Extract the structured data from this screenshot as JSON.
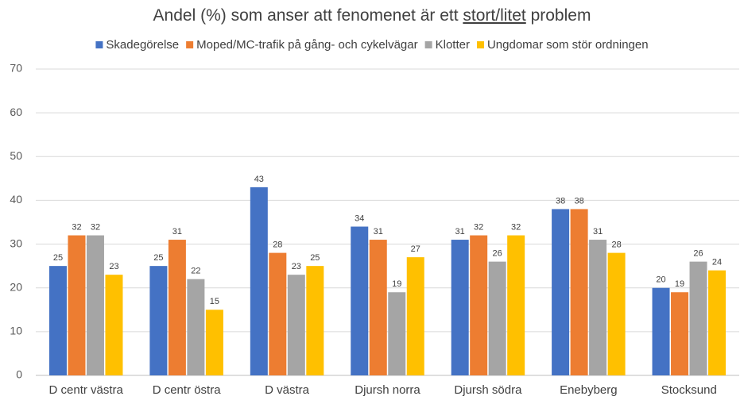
{
  "chart_data": {
    "type": "bar",
    "title": [
      "Andel (%) som anser att fenomenet är ett ",
      "stort/litet",
      " problem"
    ],
    "categories": [
      "D centr västra",
      "D centr östra",
      "D västra",
      "Djursh norra",
      "Djursh södra",
      "Enebyberg",
      "Stocksund"
    ],
    "series": [
      {
        "name": "Skadegörelse",
        "color": "#4472c4",
        "values": [
          25,
          25,
          43,
          34,
          31,
          38,
          20
        ]
      },
      {
        "name": "Moped/MC-trafik på gång- och cykelvägar",
        "color": "#ed7d31",
        "values": [
          32,
          31,
          28,
          31,
          32,
          38,
          19
        ]
      },
      {
        "name": "Klotter",
        "color": "#a5a5a5",
        "values": [
          32,
          22,
          23,
          19,
          26,
          31,
          26
        ]
      },
      {
        "name": "Ungdomar som stör ordningen",
        "color": "#ffc000",
        "values": [
          23,
          15,
          25,
          27,
          32,
          28,
          24
        ]
      }
    ],
    "ylim": [
      0,
      70
    ],
    "yticks": [
      0,
      10,
      20,
      30,
      40,
      50,
      60,
      70
    ],
    "grid": true,
    "legend": "top"
  }
}
